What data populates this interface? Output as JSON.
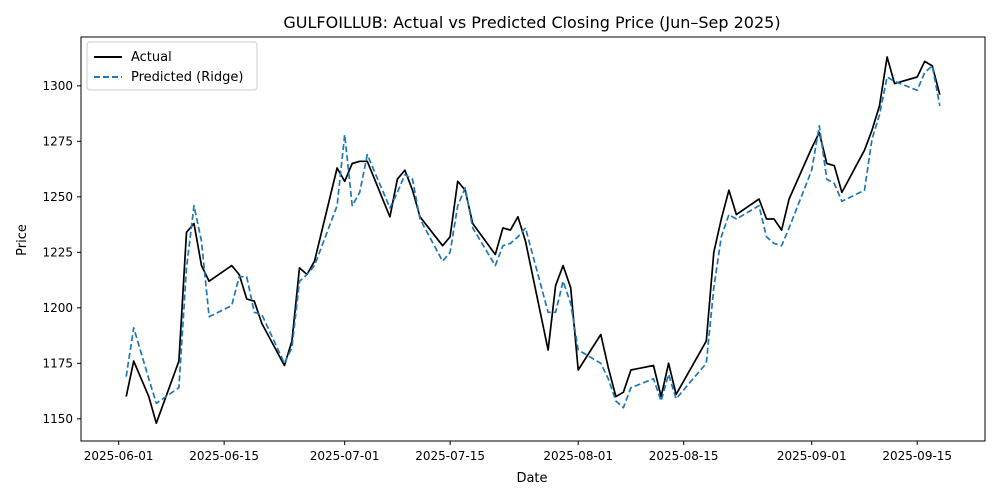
{
  "chart_data": {
    "type": "line",
    "title": "GULFOILLUB: Actual vs Predicted Closing Price (Jun–Sep 2025)",
    "xlabel": "Date",
    "ylabel": "Price",
    "xlim": [
      "2025-05-27",
      "2025-09-24"
    ],
    "ylim": [
      1140,
      1322
    ],
    "x_ticks": [
      "2025-06-01",
      "2025-06-15",
      "2025-07-01",
      "2025-07-15",
      "2025-08-01",
      "2025-08-15",
      "2025-09-01",
      "2025-09-15"
    ],
    "y_ticks": [
      1150,
      1175,
      1200,
      1225,
      1250,
      1275,
      1300
    ],
    "grid": false,
    "legend_position": "top-left",
    "series": [
      {
        "name": "Actual",
        "color": "#000000",
        "style": "solid",
        "points": [
          [
            "2025-06-02",
            1160
          ],
          [
            "2025-06-03",
            1176
          ],
          [
            "2025-06-05",
            1160
          ],
          [
            "2025-06-06",
            1148
          ],
          [
            "2025-06-09",
            1176
          ],
          [
            "2025-06-10",
            1234
          ],
          [
            "2025-06-11",
            1238
          ],
          [
            "2025-06-12",
            1219
          ],
          [
            "2025-06-13",
            1212
          ],
          [
            "2025-06-16",
            1219
          ],
          [
            "2025-06-17",
            1215
          ],
          [
            "2025-06-18",
            1204
          ],
          [
            "2025-06-19",
            1203
          ],
          [
            "2025-06-20",
            1193
          ],
          [
            "2025-06-23",
            1174
          ],
          [
            "2025-06-24",
            1185
          ],
          [
            "2025-06-25",
            1218
          ],
          [
            "2025-06-26",
            1215
          ],
          [
            "2025-06-27",
            1221
          ],
          [
            "2025-06-30",
            1263
          ],
          [
            "2025-07-01",
            1257
          ],
          [
            "2025-07-02",
            1265
          ],
          [
            "2025-07-03",
            1266
          ],
          [
            "2025-07-04",
            1266
          ],
          [
            "2025-07-07",
            1241
          ],
          [
            "2025-07-08",
            1258
          ],
          [
            "2025-07-09",
            1262
          ],
          [
            "2025-07-10",
            1253
          ],
          [
            "2025-07-11",
            1241
          ],
          [
            "2025-07-14",
            1228
          ],
          [
            "2025-07-15",
            1232
          ],
          [
            "2025-07-16",
            1257
          ],
          [
            "2025-07-17",
            1253
          ],
          [
            "2025-07-18",
            1238
          ],
          [
            "2025-07-21",
            1224
          ],
          [
            "2025-07-22",
            1236
          ],
          [
            "2025-07-23",
            1235
          ],
          [
            "2025-07-24",
            1241
          ],
          [
            "2025-07-25",
            1230
          ],
          [
            "2025-07-28",
            1181
          ],
          [
            "2025-07-29",
            1210
          ],
          [
            "2025-07-30",
            1219
          ],
          [
            "2025-07-31",
            1209
          ],
          [
            "2025-08-01",
            1172
          ],
          [
            "2025-08-04",
            1188
          ],
          [
            "2025-08-05",
            1173
          ],
          [
            "2025-08-06",
            1160
          ],
          [
            "2025-08-07",
            1162
          ],
          [
            "2025-08-08",
            1172
          ],
          [
            "2025-08-11",
            1174
          ],
          [
            "2025-08-12",
            1160
          ],
          [
            "2025-08-13",
            1175
          ],
          [
            "2025-08-14",
            1161
          ],
          [
            "2025-08-18",
            1185
          ],
          [
            "2025-08-19",
            1225
          ],
          [
            "2025-08-20",
            1240
          ],
          [
            "2025-08-21",
            1253
          ],
          [
            "2025-08-22",
            1242
          ],
          [
            "2025-08-25",
            1249
          ],
          [
            "2025-08-26",
            1240
          ],
          [
            "2025-08-27",
            1240
          ],
          [
            "2025-08-28",
            1235
          ],
          [
            "2025-08-29",
            1249
          ],
          [
            "2025-09-01",
            1272
          ],
          [
            "2025-09-02",
            1279
          ],
          [
            "2025-09-03",
            1265
          ],
          [
            "2025-09-04",
            1264
          ],
          [
            "2025-09-05",
            1252
          ],
          [
            "2025-09-08",
            1271
          ],
          [
            "2025-09-09",
            1280
          ],
          [
            "2025-09-10",
            1291
          ],
          [
            "2025-09-11",
            1313
          ],
          [
            "2025-09-12",
            1301
          ],
          [
            "2025-09-15",
            1304
          ],
          [
            "2025-09-16",
            1311
          ],
          [
            "2025-09-17",
            1309
          ],
          [
            "2025-09-18",
            1296
          ]
        ]
      },
      {
        "name": "Predicted (Ridge)",
        "color": "#1f77b4",
        "style": "dashed",
        "points": [
          [
            "2025-06-02",
            1169
          ],
          [
            "2025-06-03",
            1191
          ],
          [
            "2025-06-05",
            1168
          ],
          [
            "2025-06-06",
            1157
          ],
          [
            "2025-06-09",
            1164
          ],
          [
            "2025-06-10",
            1218
          ],
          [
            "2025-06-11",
            1246
          ],
          [
            "2025-06-12",
            1230
          ],
          [
            "2025-06-13",
            1196
          ],
          [
            "2025-06-16",
            1201
          ],
          [
            "2025-06-17",
            1214
          ],
          [
            "2025-06-18",
            1214
          ],
          [
            "2025-06-19",
            1198
          ],
          [
            "2025-06-20",
            1197
          ],
          [
            "2025-06-23",
            1175
          ],
          [
            "2025-06-24",
            1182
          ],
          [
            "2025-06-25",
            1212
          ],
          [
            "2025-06-26",
            1215
          ],
          [
            "2025-06-27",
            1219
          ],
          [
            "2025-06-30",
            1246
          ],
          [
            "2025-07-01",
            1278
          ],
          [
            "2025-07-02",
            1246
          ],
          [
            "2025-07-03",
            1252
          ],
          [
            "2025-07-04",
            1269
          ],
          [
            "2025-07-07",
            1245
          ],
          [
            "2025-07-08",
            1252
          ],
          [
            "2025-07-09",
            1260
          ],
          [
            "2025-07-10",
            1258
          ],
          [
            "2025-07-11",
            1240
          ],
          [
            "2025-07-14",
            1221
          ],
          [
            "2025-07-15",
            1225
          ],
          [
            "2025-07-16",
            1246
          ],
          [
            "2025-07-17",
            1254
          ],
          [
            "2025-07-18",
            1236
          ],
          [
            "2025-07-21",
            1219
          ],
          [
            "2025-07-22",
            1228
          ],
          [
            "2025-07-23",
            1229
          ],
          [
            "2025-07-24",
            1232
          ],
          [
            "2025-07-25",
            1236
          ],
          [
            "2025-07-28",
            1198
          ],
          [
            "2025-07-29",
            1198
          ],
          [
            "2025-07-30",
            1212
          ],
          [
            "2025-07-31",
            1202
          ],
          [
            "2025-08-01",
            1181
          ],
          [
            "2025-08-04",
            1175
          ],
          [
            "2025-08-05",
            1168
          ],
          [
            "2025-08-06",
            1158
          ],
          [
            "2025-08-07",
            1155
          ],
          [
            "2025-08-08",
            1164
          ],
          [
            "2025-08-11",
            1168
          ],
          [
            "2025-08-12",
            1158
          ],
          [
            "2025-08-13",
            1170
          ],
          [
            "2025-08-14",
            1159
          ],
          [
            "2025-08-18",
            1175
          ],
          [
            "2025-08-19",
            1209
          ],
          [
            "2025-08-20",
            1232
          ],
          [
            "2025-08-21",
            1242
          ],
          [
            "2025-08-22",
            1240
          ],
          [
            "2025-08-25",
            1246
          ],
          [
            "2025-08-26",
            1232
          ],
          [
            "2025-08-27",
            1229
          ],
          [
            "2025-08-28",
            1228
          ],
          [
            "2025-08-29",
            1236
          ],
          [
            "2025-09-01",
            1262
          ],
          [
            "2025-09-02",
            1282
          ],
          [
            "2025-09-03",
            1258
          ],
          [
            "2025-09-04",
            1256
          ],
          [
            "2025-09-05",
            1248
          ],
          [
            "2025-09-08",
            1253
          ],
          [
            "2025-09-09",
            1276
          ],
          [
            "2025-09-10",
            1287
          ],
          [
            "2025-09-11",
            1304
          ],
          [
            "2025-09-12",
            1302
          ],
          [
            "2025-09-15",
            1298
          ],
          [
            "2025-09-16",
            1306
          ],
          [
            "2025-09-17",
            1309
          ],
          [
            "2025-09-18",
            1291
          ]
        ]
      }
    ]
  }
}
